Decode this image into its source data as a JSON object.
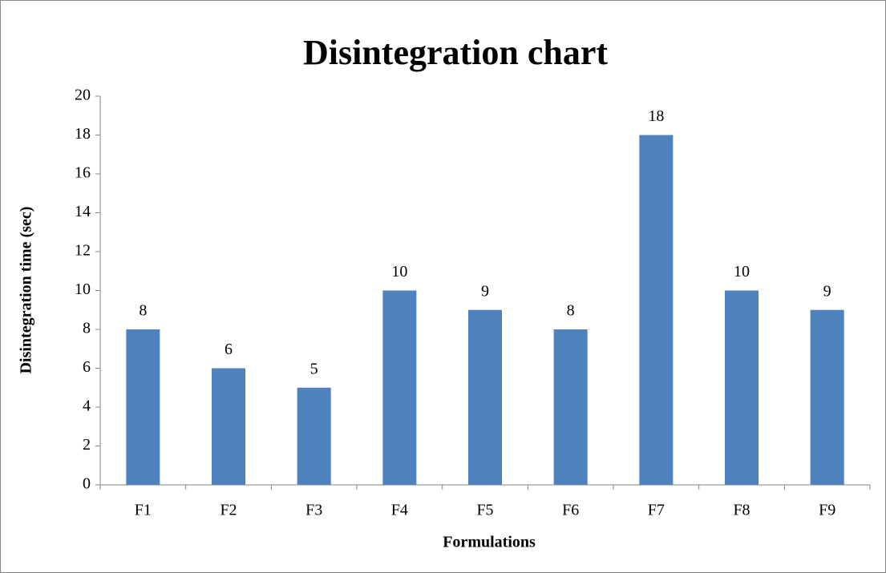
{
  "chart_data": {
    "type": "bar",
    "title": "Disintegration chart",
    "x_label": "Formulations",
    "y_label": "Disintegration time (sec)",
    "categories": [
      "F1",
      "F2",
      "F3",
      "F4",
      "F5",
      "F6",
      "F7",
      "F8",
      "F9"
    ],
    "values": [
      8,
      6,
      5,
      10,
      9,
      8,
      18,
      10,
      9
    ],
    "color": "#4f81bd",
    "ylim": [
      0,
      20
    ],
    "yticks": [
      0,
      2,
      4,
      6,
      8,
      10,
      12,
      14,
      16,
      18,
      20
    ],
    "grid": false,
    "data_labels": true
  }
}
